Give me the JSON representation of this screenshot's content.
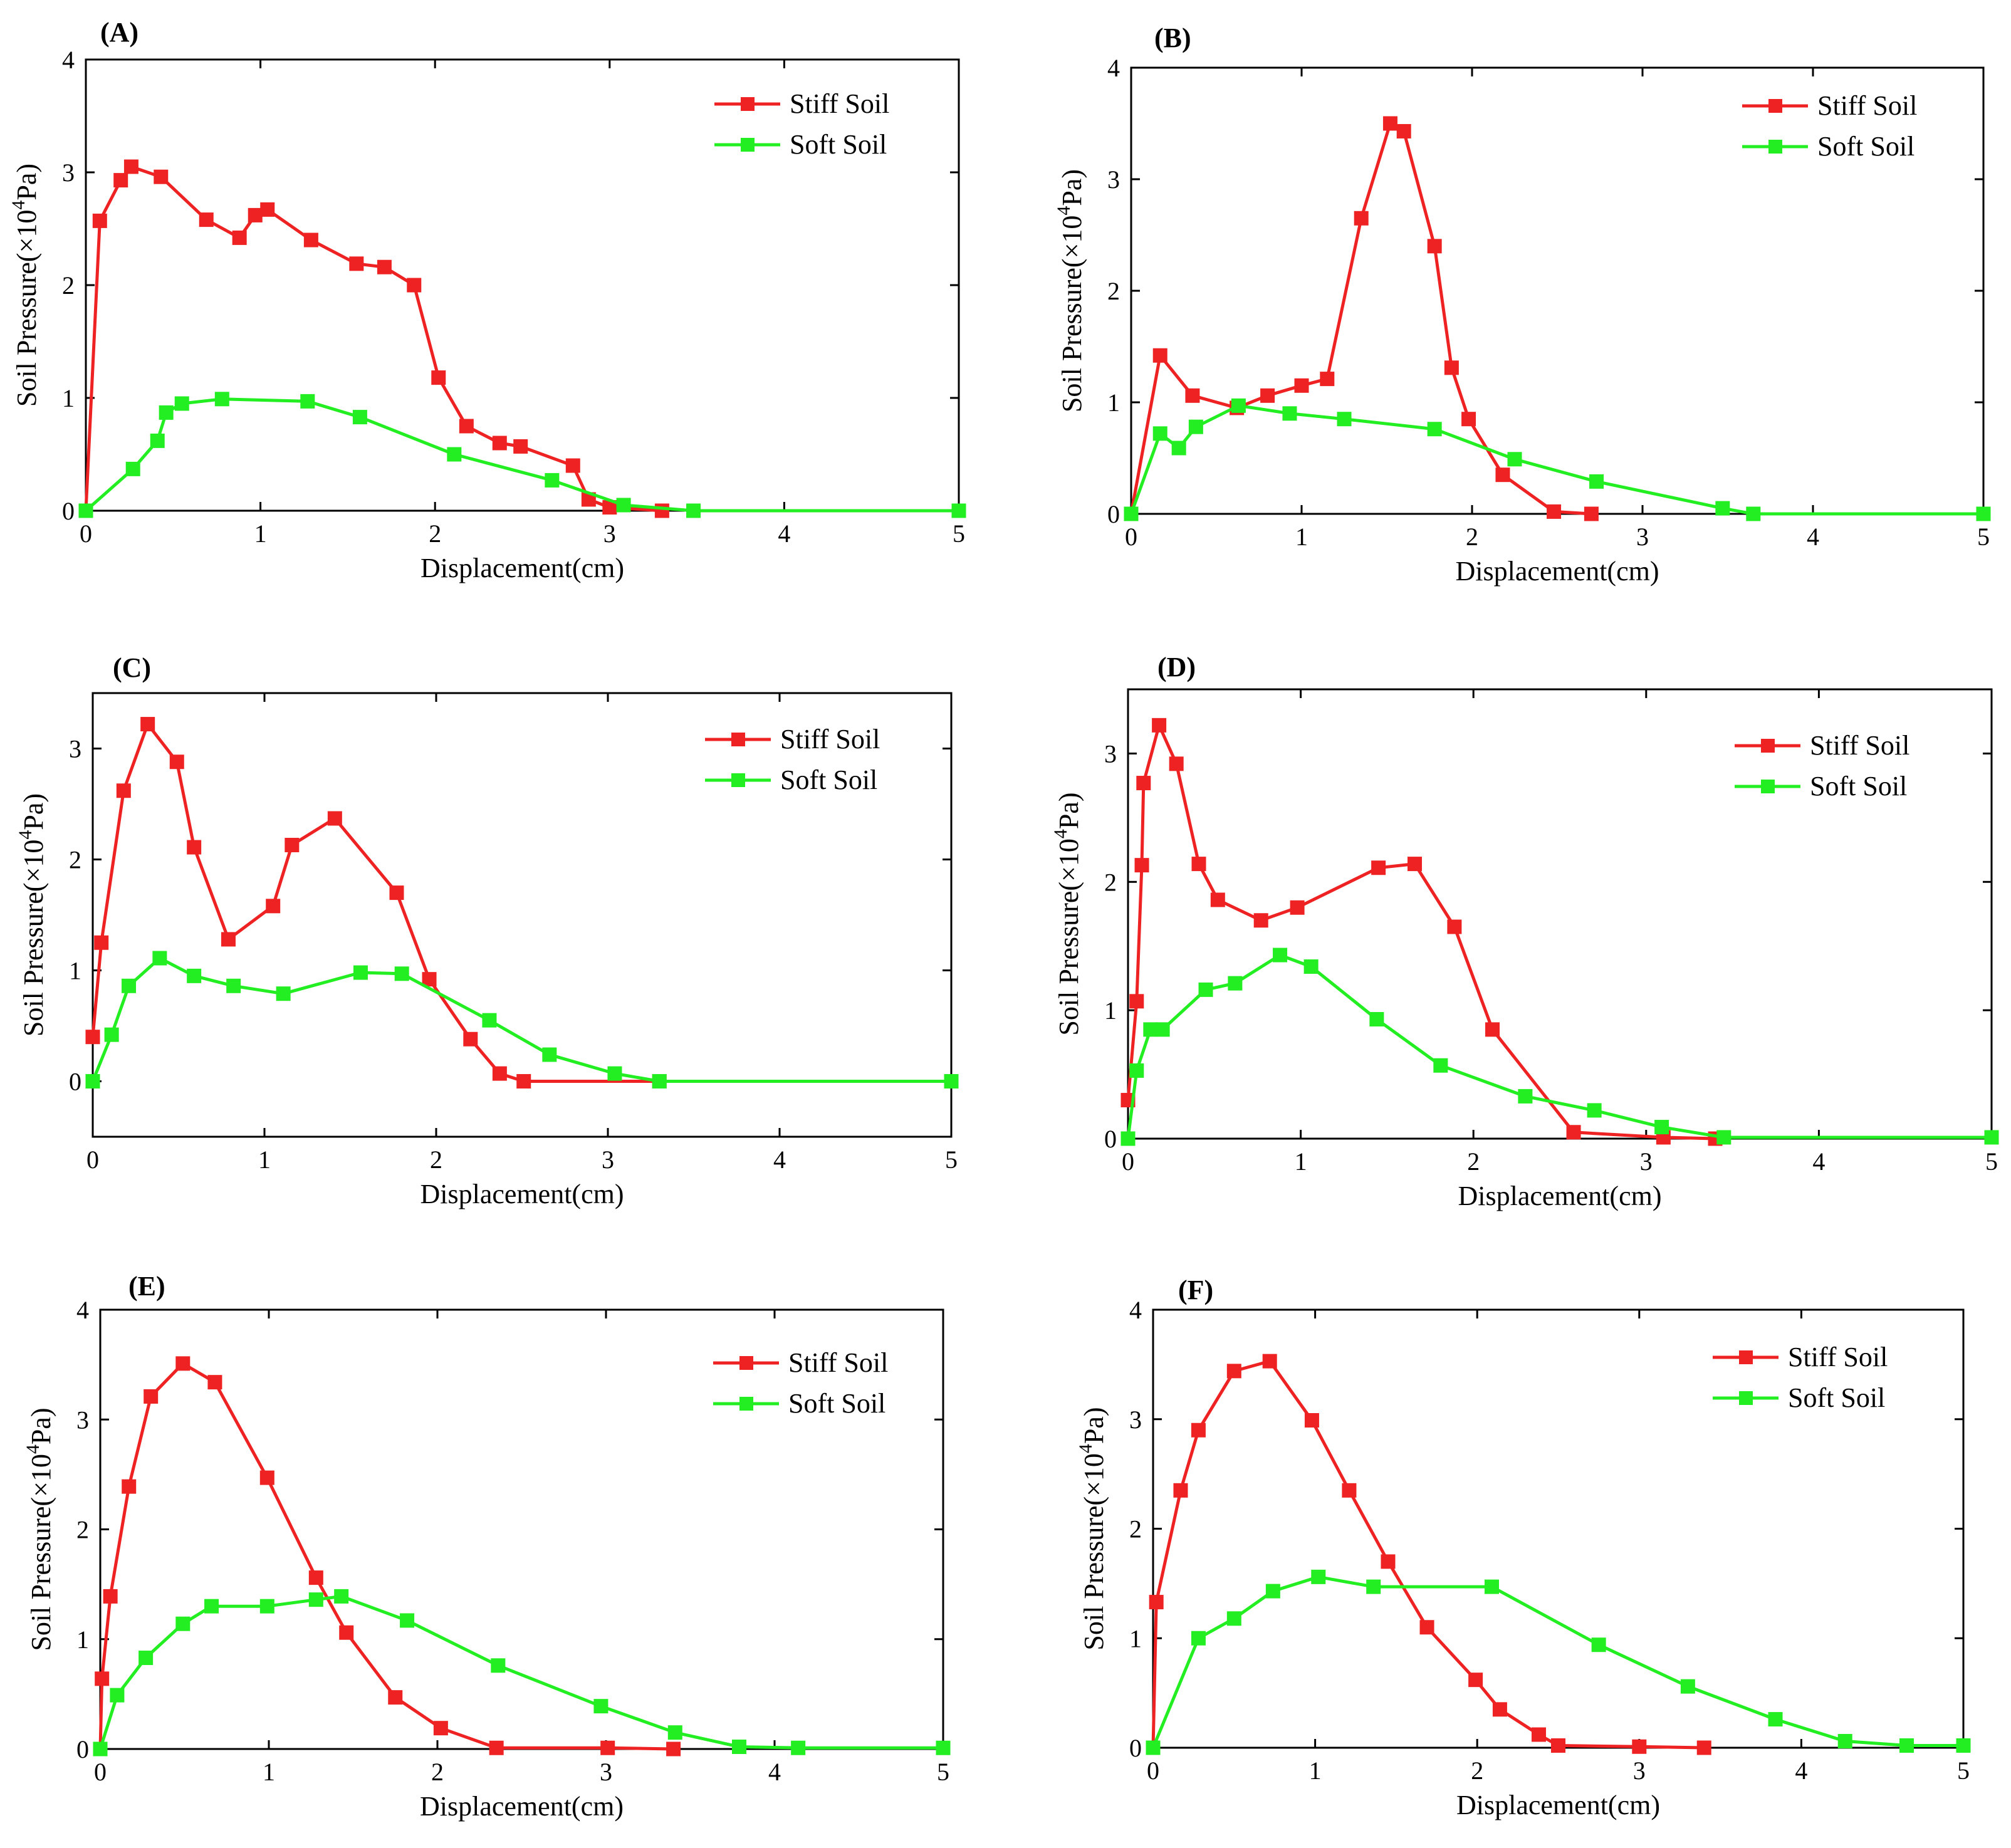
{
  "figure": {
    "background": "#ffffff"
  },
  "series_style": [
    {
      "name": "Stiff Soil",
      "color": "#ee2222"
    },
    {
      "name": "Soft Soil",
      "color": "#22ee22"
    }
  ],
  "chart_data": [
    {
      "panel": "(A)",
      "type": "line",
      "xlabel": "Displacement(cm)",
      "ylabel": {
        "base": "Soil Pressure(×10",
        "sup": "4",
        "tail": "Pa)"
      },
      "xlim": [
        0,
        5
      ],
      "ylim": [
        0,
        4
      ],
      "xticks": [
        0,
        1,
        2,
        3,
        4,
        5
      ],
      "yticks": [
        0,
        1,
        2,
        3,
        4
      ],
      "legend": "top-right",
      "series": [
        {
          "name": "Stiff Soil",
          "x": [
            0,
            0.08,
            0.2,
            0.26,
            0.43,
            0.69,
            0.88,
            0.97,
            1.04,
            1.29,
            1.55,
            1.71,
            1.88,
            2.02,
            2.18,
            2.37,
            2.49,
            2.79,
            2.88,
            3.0,
            3.3
          ],
          "y": [
            0,
            2.57,
            2.93,
            3.05,
            2.96,
            2.58,
            2.42,
            2.62,
            2.67,
            2.4,
            2.19,
            2.16,
            2.0,
            1.18,
            0.75,
            0.6,
            0.57,
            0.4,
            0.1,
            0.03,
            0
          ]
        },
        {
          "name": "Soft Soil",
          "x": [
            0,
            0.27,
            0.41,
            0.46,
            0.55,
            0.78,
            1.27,
            1.57,
            2.11,
            2.67,
            3.08,
            3.48,
            5.0
          ],
          "y": [
            0,
            0.37,
            0.62,
            0.87,
            0.95,
            0.99,
            0.97,
            0.83,
            0.5,
            0.27,
            0.05,
            0,
            0
          ]
        }
      ]
    },
    {
      "panel": "(B)",
      "type": "line",
      "xlabel": "Displacement(cm)",
      "ylabel": {
        "base": "Soil Pressure(×10",
        "sup": "4",
        "tail": "Pa)"
      },
      "xlim": [
        0,
        5
      ],
      "ylim": [
        0,
        4
      ],
      "xticks": [
        0,
        1,
        2,
        3,
        4,
        5
      ],
      "yticks": [
        0,
        1,
        2,
        3,
        4
      ],
      "legend": "top-right",
      "series": [
        {
          "name": "Stiff Soil",
          "x": [
            0,
            0.17,
            0.36,
            0.62,
            0.8,
            1.0,
            1.15,
            1.35,
            1.52,
            1.6,
            1.78,
            1.88,
            1.98,
            2.18,
            2.48,
            2.7
          ],
          "y": [
            0,
            1.42,
            1.06,
            0.95,
            1.06,
            1.15,
            1.21,
            2.65,
            3.5,
            3.43,
            2.4,
            1.31,
            0.85,
            0.35,
            0.02,
            0
          ]
        },
        {
          "name": "Soft Soil",
          "x": [
            0,
            0.17,
            0.28,
            0.38,
            0.63,
            0.93,
            1.25,
            1.78,
            2.25,
            2.73,
            3.47,
            3.65,
            5.0
          ],
          "y": [
            0,
            0.72,
            0.59,
            0.78,
            0.97,
            0.9,
            0.85,
            0.76,
            0.49,
            0.29,
            0.05,
            0,
            0
          ]
        }
      ]
    },
    {
      "panel": "(C)",
      "type": "line",
      "xlabel": "Displacement(cm)",
      "ylabel": {
        "base": "Soil Pressure(×10",
        "sup": "4",
        "tail": "Pa)"
      },
      "xlim": [
        0,
        5
      ],
      "ylim": [
        -0.5,
        3.5
      ],
      "xticks": [
        0,
        1,
        2,
        3,
        4,
        5
      ],
      "yticks": [
        0,
        1,
        2,
        3
      ],
      "legend": "top-right",
      "series": [
        {
          "name": "Stiff Soil",
          "x": [
            0,
            0.05,
            0.18,
            0.32,
            0.49,
            0.59,
            0.79,
            1.05,
            1.16,
            1.41,
            1.77,
            1.96,
            2.2,
            2.37,
            2.51,
            3.3
          ],
          "y": [
            0.4,
            1.25,
            2.62,
            3.22,
            2.88,
            2.11,
            1.28,
            1.58,
            2.13,
            2.37,
            1.7,
            0.92,
            0.38,
            0.07,
            0,
            0
          ]
        },
        {
          "name": "Soft Soil",
          "x": [
            0,
            0.11,
            0.21,
            0.39,
            0.59,
            0.82,
            1.11,
            1.56,
            1.8,
            2.31,
            2.66,
            3.04,
            3.3,
            5.0
          ],
          "y": [
            0,
            0.42,
            0.86,
            1.11,
            0.95,
            0.86,
            0.79,
            0.98,
            0.97,
            0.55,
            0.24,
            0.07,
            0,
            0
          ]
        }
      ]
    },
    {
      "panel": "(D)",
      "type": "line",
      "xlabel": "Displacement(cm)",
      "ylabel": {
        "base": "Soil Pressure(×10",
        "sup": "4",
        "tail": "Pa)"
      },
      "xlim": [
        0,
        5
      ],
      "ylim": [
        0,
        3.5
      ],
      "xticks": [
        0,
        1,
        2,
        3,
        4,
        5
      ],
      "yticks": [
        0,
        1,
        2,
        3
      ],
      "legend": "top-right",
      "series": [
        {
          "name": "Stiff Soil",
          "x": [
            0,
            0.05,
            0.08,
            0.09,
            0.18,
            0.28,
            0.41,
            0.52,
            0.77,
            0.98,
            1.45,
            1.66,
            1.89,
            2.11,
            2.58,
            3.1,
            3.4
          ],
          "y": [
            0.3,
            1.07,
            2.13,
            2.77,
            3.22,
            2.92,
            2.14,
            1.86,
            1.7,
            1.8,
            2.11,
            2.14,
            1.65,
            0.85,
            0.05,
            0.01,
            0
          ]
        },
        {
          "name": "Soft Soil",
          "x": [
            0,
            0.05,
            0.13,
            0.2,
            0.45,
            0.62,
            0.88,
            1.06,
            1.44,
            1.81,
            2.3,
            2.7,
            3.09,
            3.45,
            5.0
          ],
          "y": [
            0,
            0.53,
            0.85,
            0.85,
            1.16,
            1.21,
            1.43,
            1.34,
            0.93,
            0.57,
            0.33,
            0.22,
            0.09,
            0.01,
            0.01
          ]
        }
      ]
    },
    {
      "panel": "(E)",
      "type": "line",
      "xlabel": "Displacement(cm)",
      "ylabel": {
        "base": "Soil Pressure(×10",
        "sup": "4",
        "tail": "Pa)"
      },
      "xlim": [
        0,
        5
      ],
      "ylim": [
        0,
        4
      ],
      "xticks": [
        0,
        1,
        2,
        3,
        4,
        5
      ],
      "yticks": [
        0,
        1,
        2,
        3,
        4
      ],
      "legend": "top-right",
      "series": [
        {
          "name": "Stiff Soil",
          "x": [
            0,
            0.01,
            0.06,
            0.17,
            0.3,
            0.49,
            0.68,
            0.99,
            1.28,
            1.46,
            1.75,
            2.02,
            2.35,
            3.01,
            3.4
          ],
          "y": [
            0,
            0.64,
            1.39,
            2.39,
            3.21,
            3.51,
            3.34,
            2.47,
            1.56,
            1.06,
            0.47,
            0.19,
            0.01,
            0.01,
            0
          ]
        },
        {
          "name": "Soft Soil",
          "x": [
            0,
            0.1,
            0.27,
            0.49,
            0.66,
            0.99,
            1.28,
            1.43,
            1.82,
            2.36,
            2.97,
            3.41,
            3.79,
            4.14,
            5.0
          ],
          "y": [
            0,
            0.49,
            0.83,
            1.14,
            1.3,
            1.3,
            1.36,
            1.39,
            1.17,
            0.76,
            0.39,
            0.15,
            0.02,
            0.01,
            0.01
          ]
        }
      ]
    },
    {
      "panel": "(F)",
      "type": "line",
      "xlabel": "Displacement(cm)",
      "ylabel": {
        "base": "Soil Pressure(×10",
        "sup": "4",
        "tail": "Pa)"
      },
      "xlim": [
        0,
        5
      ],
      "ylim": [
        0,
        4
      ],
      "xticks": [
        0,
        1,
        2,
        3,
        4,
        5
      ],
      "yticks": [
        0,
        1,
        2,
        3,
        4
      ],
      "legend": "top-right",
      "series": [
        {
          "name": "Stiff Soil",
          "x": [
            0,
            0.02,
            0.17,
            0.28,
            0.5,
            0.72,
            0.98,
            1.21,
            1.45,
            1.69,
            1.99,
            2.14,
            2.38,
            2.5,
            3.0,
            3.4
          ],
          "y": [
            0,
            1.33,
            2.35,
            2.9,
            3.44,
            3.53,
            2.99,
            2.35,
            1.7,
            1.1,
            0.62,
            0.35,
            0.12,
            0.02,
            0.01,
            0
          ]
        },
        {
          "name": "Soft Soil",
          "x": [
            0,
            0.28,
            0.5,
            0.74,
            1.02,
            1.36,
            2.09,
            2.75,
            3.3,
            3.84,
            4.27,
            4.65,
            5.0
          ],
          "y": [
            0,
            1.0,
            1.18,
            1.43,
            1.56,
            1.47,
            1.47,
            0.94,
            0.56,
            0.26,
            0.06,
            0.02,
            0.02
          ]
        }
      ]
    }
  ]
}
